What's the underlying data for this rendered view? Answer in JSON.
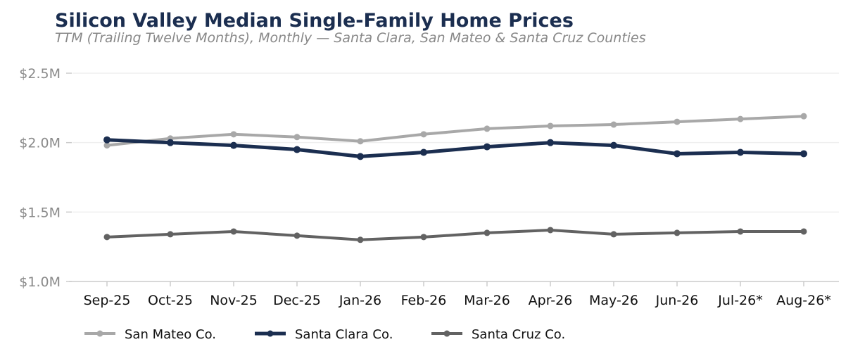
{
  "chart_data": {
    "type": "line",
    "title": "Silicon Valley Median Single-Family Home Prices",
    "subtitle": "TTM (Trailing Twelve Months), Monthly — Santa Clara, San Mateo & Santa Cruz Counties",
    "xlabel": "",
    "ylabel": "",
    "categories": [
      "Sep-25",
      "Oct-25",
      "Nov-25",
      "Dec-25",
      "Jan-26",
      "Feb-26",
      "Mar-26",
      "Apr-26",
      "May-26",
      "Jun-26",
      "Jul-26*",
      "Aug-26*"
    ],
    "ylim": [
      1.0,
      2.5
    ],
    "yticks": [
      1.0,
      1.5,
      2.0,
      2.5
    ],
    "ytick_labels": [
      "$1.0M",
      "$1.5M",
      "$2.0M",
      "$2.5M"
    ],
    "grid": "horizontal",
    "legend_position": "bottom-left",
    "series": [
      {
        "name": "San Mateo Co.",
        "color": "#a8a8a8",
        "values": [
          1.98,
          2.03,
          2.06,
          2.04,
          2.01,
          2.06,
          2.1,
          2.12,
          2.13,
          2.15,
          2.17,
          2.19
        ]
      },
      {
        "name": "Santa Clara Co.",
        "color": "#1b2e50",
        "values": [
          2.02,
          2.0,
          1.98,
          1.95,
          1.9,
          1.93,
          1.97,
          2.0,
          1.98,
          1.92,
          1.93,
          1.92
        ]
      },
      {
        "name": "Santa Cruz Co.",
        "color": "#626262",
        "values": [
          1.32,
          1.34,
          1.36,
          1.33,
          1.3,
          1.32,
          1.35,
          1.37,
          1.34,
          1.35,
          1.36,
          1.36
        ]
      }
    ]
  }
}
